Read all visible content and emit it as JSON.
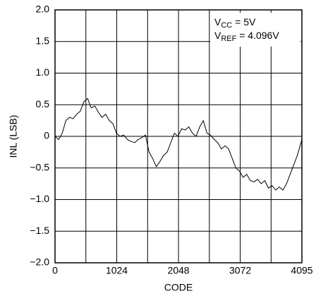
{
  "chart_data": {
    "type": "line",
    "xlabel": "CODE",
    "ylabel": "INL (LSB)",
    "annotations": [
      {
        "base": "V",
        "sub": "CC",
        "text": " = 5V"
      },
      {
        "base": "V",
        "sub": "REF",
        "text": " = 4.096V"
      }
    ],
    "x": [
      0,
      60,
      120,
      180,
      240,
      300,
      360,
      420,
      480,
      540,
      600,
      660,
      720,
      780,
      840,
      900,
      960,
      1020,
      1080,
      1140,
      1200,
      1260,
      1320,
      1380,
      1440,
      1500,
      1560,
      1620,
      1680,
      1740,
      1800,
      1860,
      1920,
      1980,
      2040,
      2100,
      2160,
      2220,
      2280,
      2340,
      2400,
      2460,
      2520,
      2580,
      2640,
      2700,
      2760,
      2820,
      2880,
      2940,
      3000,
      3060,
      3120,
      3180,
      3240,
      3300,
      3360,
      3420,
      3480,
      3540,
      3600,
      3660,
      3720,
      3780,
      3840,
      3900,
      3960,
      4020,
      4095
    ],
    "values": [
      0,
      -0.05,
      0.05,
      0.25,
      0.3,
      0.28,
      0.35,
      0.4,
      0.55,
      0.6,
      0.45,
      0.48,
      0.38,
      0.3,
      0.35,
      0.25,
      0.2,
      0.05,
      0,
      0.02,
      -0.05,
      -0.08,
      -0.1,
      -0.05,
      -0.02,
      0.02,
      -0.25,
      -0.35,
      -0.48,
      -0.4,
      -0.3,
      -0.25,
      -0.1,
      0.05,
      0,
      0.12,
      0.1,
      0.15,
      0.05,
      0,
      0.15,
      0.25,
      0.05,
      0.02,
      -0.05,
      -0.1,
      -0.2,
      -0.15,
      -0.2,
      -0.35,
      -0.5,
      -0.55,
      -0.65,
      -0.6,
      -0.7,
      -0.72,
      -0.68,
      -0.75,
      -0.7,
      -0.82,
      -0.78,
      -0.85,
      -0.8,
      -0.85,
      -0.75,
      -0.6,
      -0.45,
      -0.3,
      -0.05
    ],
    "color": "#000000",
    "xlim": [
      0,
      4095
    ],
    "ylim": [
      -2,
      2
    ],
    "xticks": [
      0,
      1024,
      2048,
      3072,
      4095
    ],
    "xgrid": [
      512,
      1024,
      1536,
      2048,
      2560,
      3072,
      3584
    ],
    "yticks": [
      {
        "value": -2,
        "label": "−2.0"
      },
      {
        "value": -1.5,
        "label": "−1.5"
      },
      {
        "value": -1,
        "label": "−1.0"
      },
      {
        "value": -0.5,
        "label": "−0.5"
      },
      0,
      {
        "value": 0.5,
        "label": "0.5"
      },
      {
        "value": 1,
        "label": "1.0"
      },
      {
        "value": 1.5,
        "label": "1.5"
      },
      {
        "value": 2,
        "label": "2.0"
      }
    ],
    "grid": true
  }
}
